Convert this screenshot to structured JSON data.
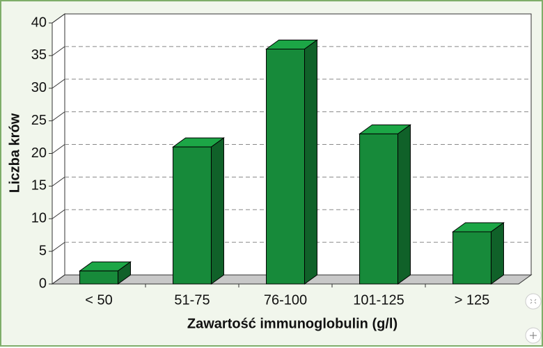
{
  "chart_data": {
    "type": "bar3d",
    "categories": [
      "< 50",
      "51-75",
      "76-100",
      "101-125",
      "> 125"
    ],
    "values": [
      2,
      21,
      36,
      23,
      8
    ],
    "color": "#178a3a",
    "ylim": [
      0,
      40
    ],
    "yticks": [
      0,
      5,
      10,
      15,
      20,
      25,
      30,
      35,
      40
    ],
    "grid": true,
    "ylabel": "Liczba krów",
    "xlabel": "Zawartość immunoglobulin (g/l)"
  }
}
